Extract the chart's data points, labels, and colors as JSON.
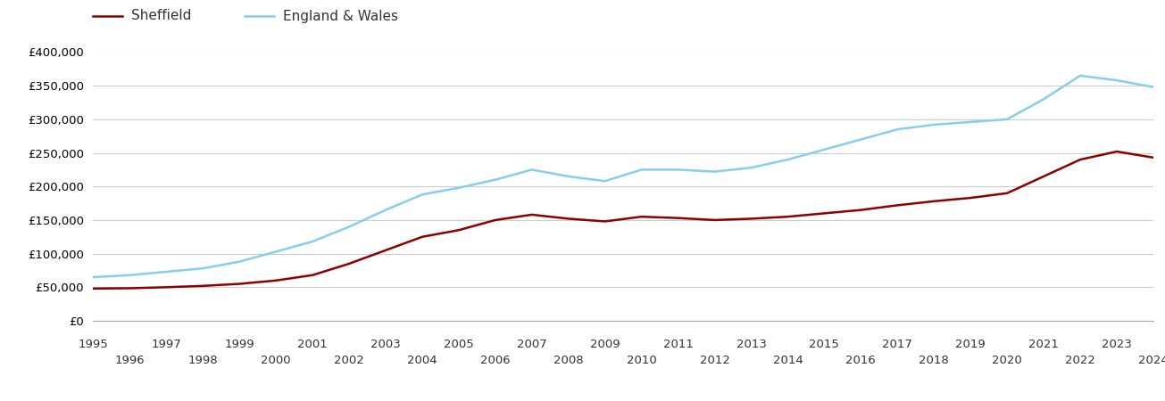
{
  "years": [
    1995,
    1996,
    1997,
    1998,
    1999,
    2000,
    2001,
    2002,
    2003,
    2004,
    2005,
    2006,
    2007,
    2008,
    2009,
    2010,
    2011,
    2012,
    2013,
    2014,
    2015,
    2016,
    2017,
    2018,
    2019,
    2020,
    2021,
    2022,
    2023,
    2024
  ],
  "sheffield": [
    48000,
    48500,
    50000,
    52000,
    55000,
    60000,
    68000,
    85000,
    105000,
    125000,
    135000,
    150000,
    158000,
    152000,
    148000,
    155000,
    153000,
    150000,
    152000,
    155000,
    160000,
    165000,
    172000,
    178000,
    183000,
    190000,
    215000,
    240000,
    252000,
    243000
  ],
  "england_wales": [
    65000,
    68000,
    73000,
    78000,
    88000,
    103000,
    118000,
    140000,
    165000,
    188000,
    198000,
    210000,
    225000,
    215000,
    208000,
    225000,
    225000,
    222000,
    228000,
    240000,
    255000,
    270000,
    285000,
    292000,
    296000,
    300000,
    330000,
    365000,
    358000,
    348000
  ],
  "sheffield_color": "#8B0000",
  "england_wales_color": "#87CEEB",
  "background_color": "#ffffff",
  "grid_color": "#cccccc",
  "legend_sheffield": "Sheffield",
  "legend_england_wales": "England & Wales",
  "ylim": [
    0,
    400000
  ],
  "yticks": [
    0,
    50000,
    100000,
    150000,
    200000,
    250000,
    300000,
    350000,
    400000
  ],
  "xlabel_odd": [
    1995,
    1997,
    1999,
    2001,
    2003,
    2005,
    2007,
    2009,
    2011,
    2013,
    2015,
    2017,
    2019,
    2021,
    2023
  ],
  "xlabel_even": [
    1996,
    1998,
    2000,
    2002,
    2004,
    2006,
    2008,
    2010,
    2012,
    2014,
    2016,
    2018,
    2020,
    2022,
    2024
  ],
  "line_width": 1.8,
  "tick_fontsize": 9.5,
  "legend_fontsize": 11
}
